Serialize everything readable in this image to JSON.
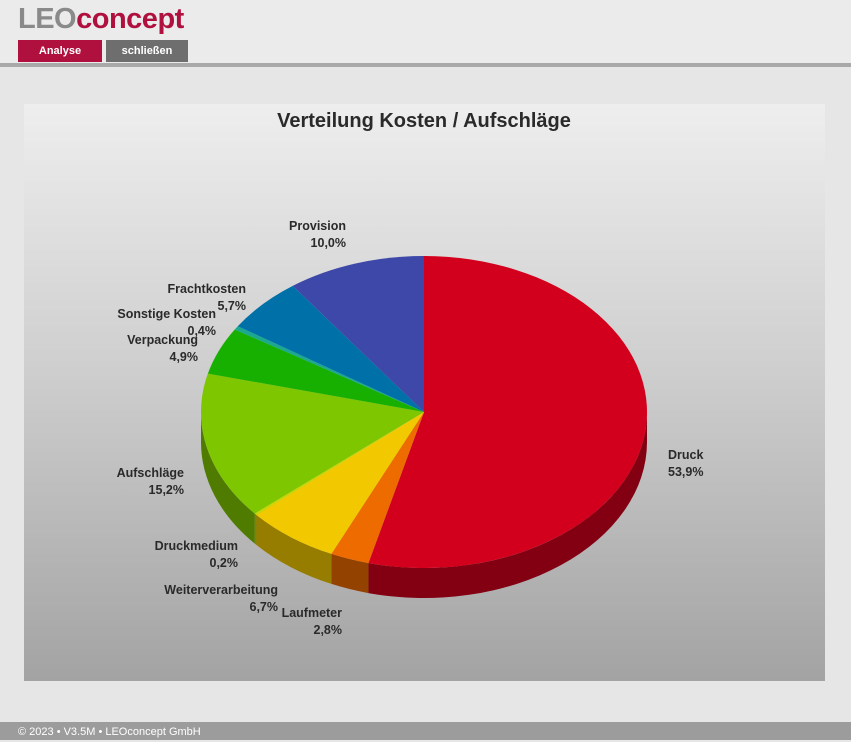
{
  "header": {
    "logo_leo": "LEO",
    "logo_concept": "concept",
    "tabs": [
      {
        "label": "Analyse",
        "color": "#b0103e"
      },
      {
        "label": "schließen",
        "color": "#6e6e6e"
      }
    ]
  },
  "chart_data": {
    "type": "pie",
    "title": "Verteilung Kosten / Aufschläge",
    "slices": [
      {
        "label": "Druck",
        "value_text": "53,9%",
        "value": 53.9,
        "color": "#d2001c"
      },
      {
        "label": "Laufmeter",
        "value_text": "2,8%",
        "value": 2.8,
        "color": "#ee6b00"
      },
      {
        "label": "Weiterverarbeitung",
        "value_text": "6,7%",
        "value": 6.7,
        "color": "#f2c900"
      },
      {
        "label": "Druckmedium",
        "value_text": "0,2%",
        "value": 0.2,
        "color": "#c6d800"
      },
      {
        "label": "Aufschläge",
        "value_text": "15,2%",
        "value": 15.2,
        "color": "#7dc600"
      },
      {
        "label": "Verpackung",
        "value_text": "4,9%",
        "value": 4.9,
        "color": "#17b000"
      },
      {
        "label": "Sonstige Kosten",
        "value_text": "0,4%",
        "value": 0.4,
        "color": "#1aa890"
      },
      {
        "label": "Frachtkosten",
        "value_text": "5,7%",
        "value": 5.7,
        "color": "#0070a8"
      },
      {
        "label": "Provision",
        "value_text": "10,0%",
        "value": 10.0,
        "color": "#3d48a8"
      }
    ],
    "legend": "none",
    "three_d": true
  },
  "footer": {
    "text": "© 2023 • V3.5M • LEOconcept GmbH"
  }
}
